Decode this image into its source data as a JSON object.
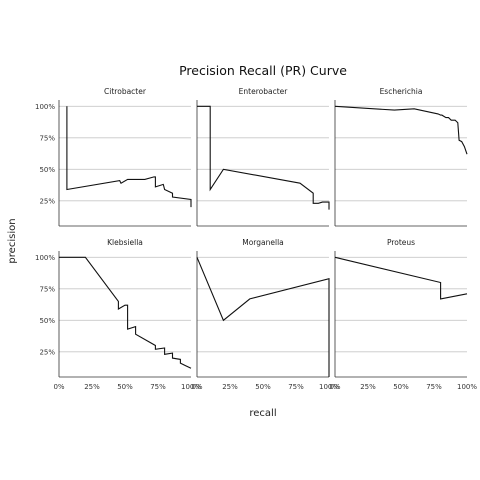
{
  "chart_data": {
    "type": "line",
    "title": "Precision Recall (PR) Curve",
    "xlabel": "recall",
    "ylabel": "precision",
    "xlim": [
      0,
      1
    ],
    "ylim": [
      0.05,
      1.05
    ],
    "x_ticks": [
      0,
      0.25,
      0.5,
      0.75,
      1
    ],
    "x_tick_labels": [
      "0%",
      "25%",
      "50%",
      "75%",
      "100%"
    ],
    "y_ticks": [
      0.25,
      0.5,
      0.75,
      1
    ],
    "y_tick_labels": [
      "25%",
      "50%",
      "75%",
      "100%"
    ],
    "grid": true,
    "legend": "none",
    "facets": [
      {
        "name": "Citrobacter",
        "x": [
          0.06,
          0.06,
          0.46,
          0.47,
          0.52,
          0.65,
          0.72,
          0.73,
          0.73,
          0.79,
          0.8,
          0.84,
          0.86,
          0.86,
          1.0,
          1.0
        ],
        "y": [
          1.0,
          0.34,
          0.41,
          0.39,
          0.42,
          0.42,
          0.44,
          0.44,
          0.36,
          0.38,
          0.34,
          0.32,
          0.31,
          0.28,
          0.26,
          0.2
        ]
      },
      {
        "name": "Enterobacter",
        "x": [
          0.0,
          0.1,
          0.1,
          0.2,
          0.78,
          0.88,
          0.88,
          0.92,
          0.95,
          1.0,
          1.0
        ],
        "y": [
          1.0,
          1.0,
          0.34,
          0.5,
          0.39,
          0.31,
          0.23,
          0.23,
          0.24,
          0.24,
          0.18
        ]
      },
      {
        "name": "Escherichia",
        "x": [
          0.0,
          0.45,
          0.6,
          0.78,
          0.8,
          0.81,
          0.84,
          0.86,
          0.88,
          0.91,
          0.92,
          0.93,
          0.94,
          0.96,
          0.98,
          1.0
        ],
        "y": [
          1.0,
          0.97,
          0.98,
          0.94,
          0.93,
          0.93,
          0.91,
          0.91,
          0.89,
          0.89,
          0.88,
          0.87,
          0.73,
          0.72,
          0.68,
          0.62
        ]
      },
      {
        "name": "Klebsiella",
        "x": [
          0.0,
          0.2,
          0.45,
          0.45,
          0.5,
          0.5,
          0.52,
          0.52,
          0.58,
          0.58,
          0.73,
          0.73,
          0.8,
          0.8,
          0.86,
          0.86,
          0.92,
          0.92,
          0.96,
          1.0
        ],
        "y": [
          1.0,
          1.0,
          0.65,
          0.59,
          0.62,
          0.62,
          0.62,
          0.43,
          0.45,
          0.39,
          0.3,
          0.27,
          0.28,
          0.23,
          0.24,
          0.2,
          0.19,
          0.16,
          0.14,
          0.12
        ]
      },
      {
        "name": "Morganella",
        "x": [
          0.0,
          0.2,
          0.4,
          1.0,
          1.0
        ],
        "y": [
          1.0,
          0.5,
          0.67,
          0.83,
          0.05
        ]
      },
      {
        "name": "Proteus",
        "x": [
          0.0,
          0.8,
          0.8,
          1.0
        ],
        "y": [
          1.0,
          0.8,
          0.67,
          0.71
        ]
      }
    ]
  }
}
